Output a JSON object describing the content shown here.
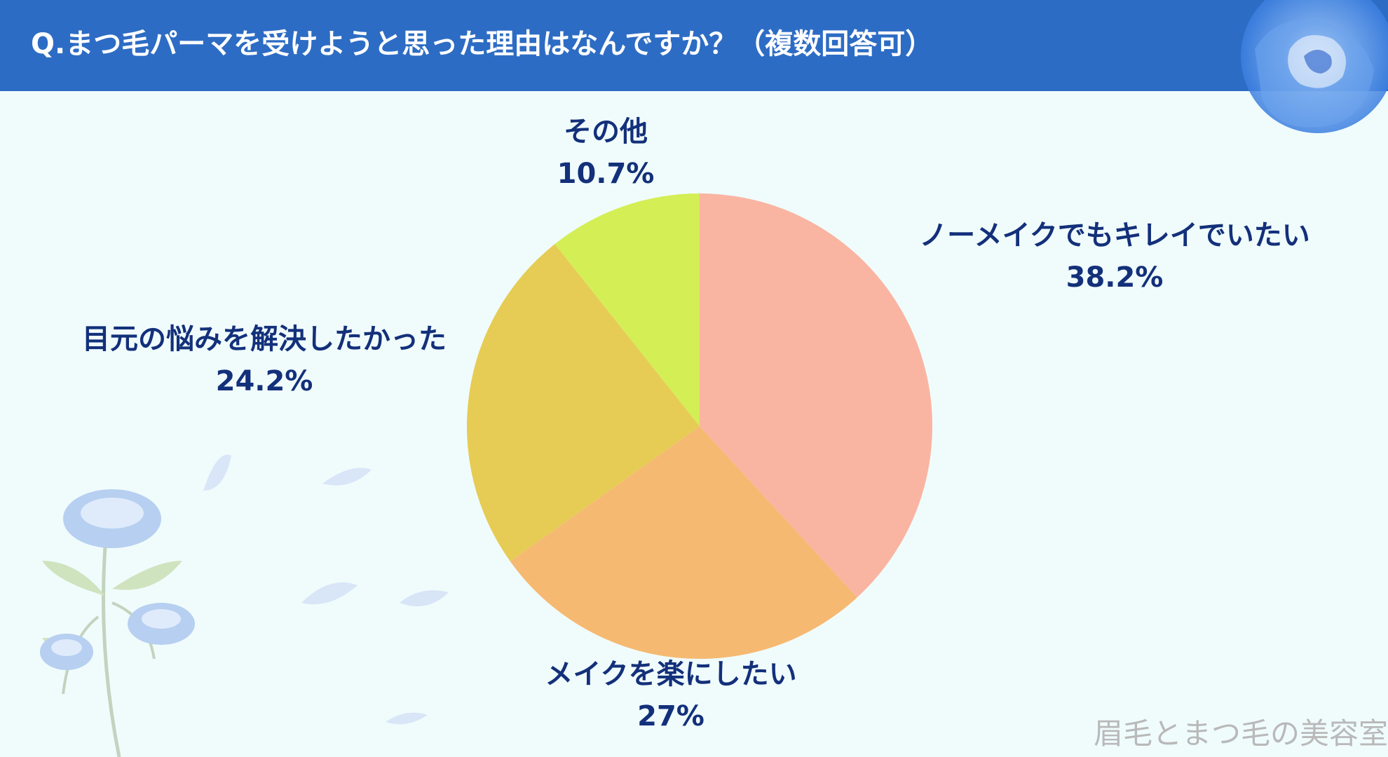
{
  "title": "Q.まつ毛パーマを受けようと思った理由はなんですか？（複数回答可）",
  "watermark": "眉毛とまつ毛の美容室",
  "chart_data": {
    "type": "pie",
    "title": "Q.まつ毛パーマを受けようと思った理由はなんですか？（複数回答可）",
    "start_angle": "12 o'clock",
    "direction": "clockwise",
    "slices": [
      {
        "label": "ノーメイクでもキレイでいたい",
        "value": 38.2,
        "value_label": "38.2%",
        "color": "#f9b5a2"
      },
      {
        "label": "メイクを楽にしたい",
        "value": 27,
        "value_label": "27%",
        "color": "#f6b972"
      },
      {
        "label": "目元の悩みを解決したかった",
        "value": 24.2,
        "value_label": "24.2%",
        "color": "#e6cc55"
      },
      {
        "label": "その他",
        "value": 10.7,
        "value_label": "10.7%",
        "color": "#d4ee55"
      }
    ]
  },
  "colors": {
    "header": "#2d6cc4",
    "background": "#f0fcfc",
    "label_text": "#13307a"
  },
  "decorations": [
    "rose-icon",
    "rose-stems-icon",
    "petal-icon"
  ]
}
